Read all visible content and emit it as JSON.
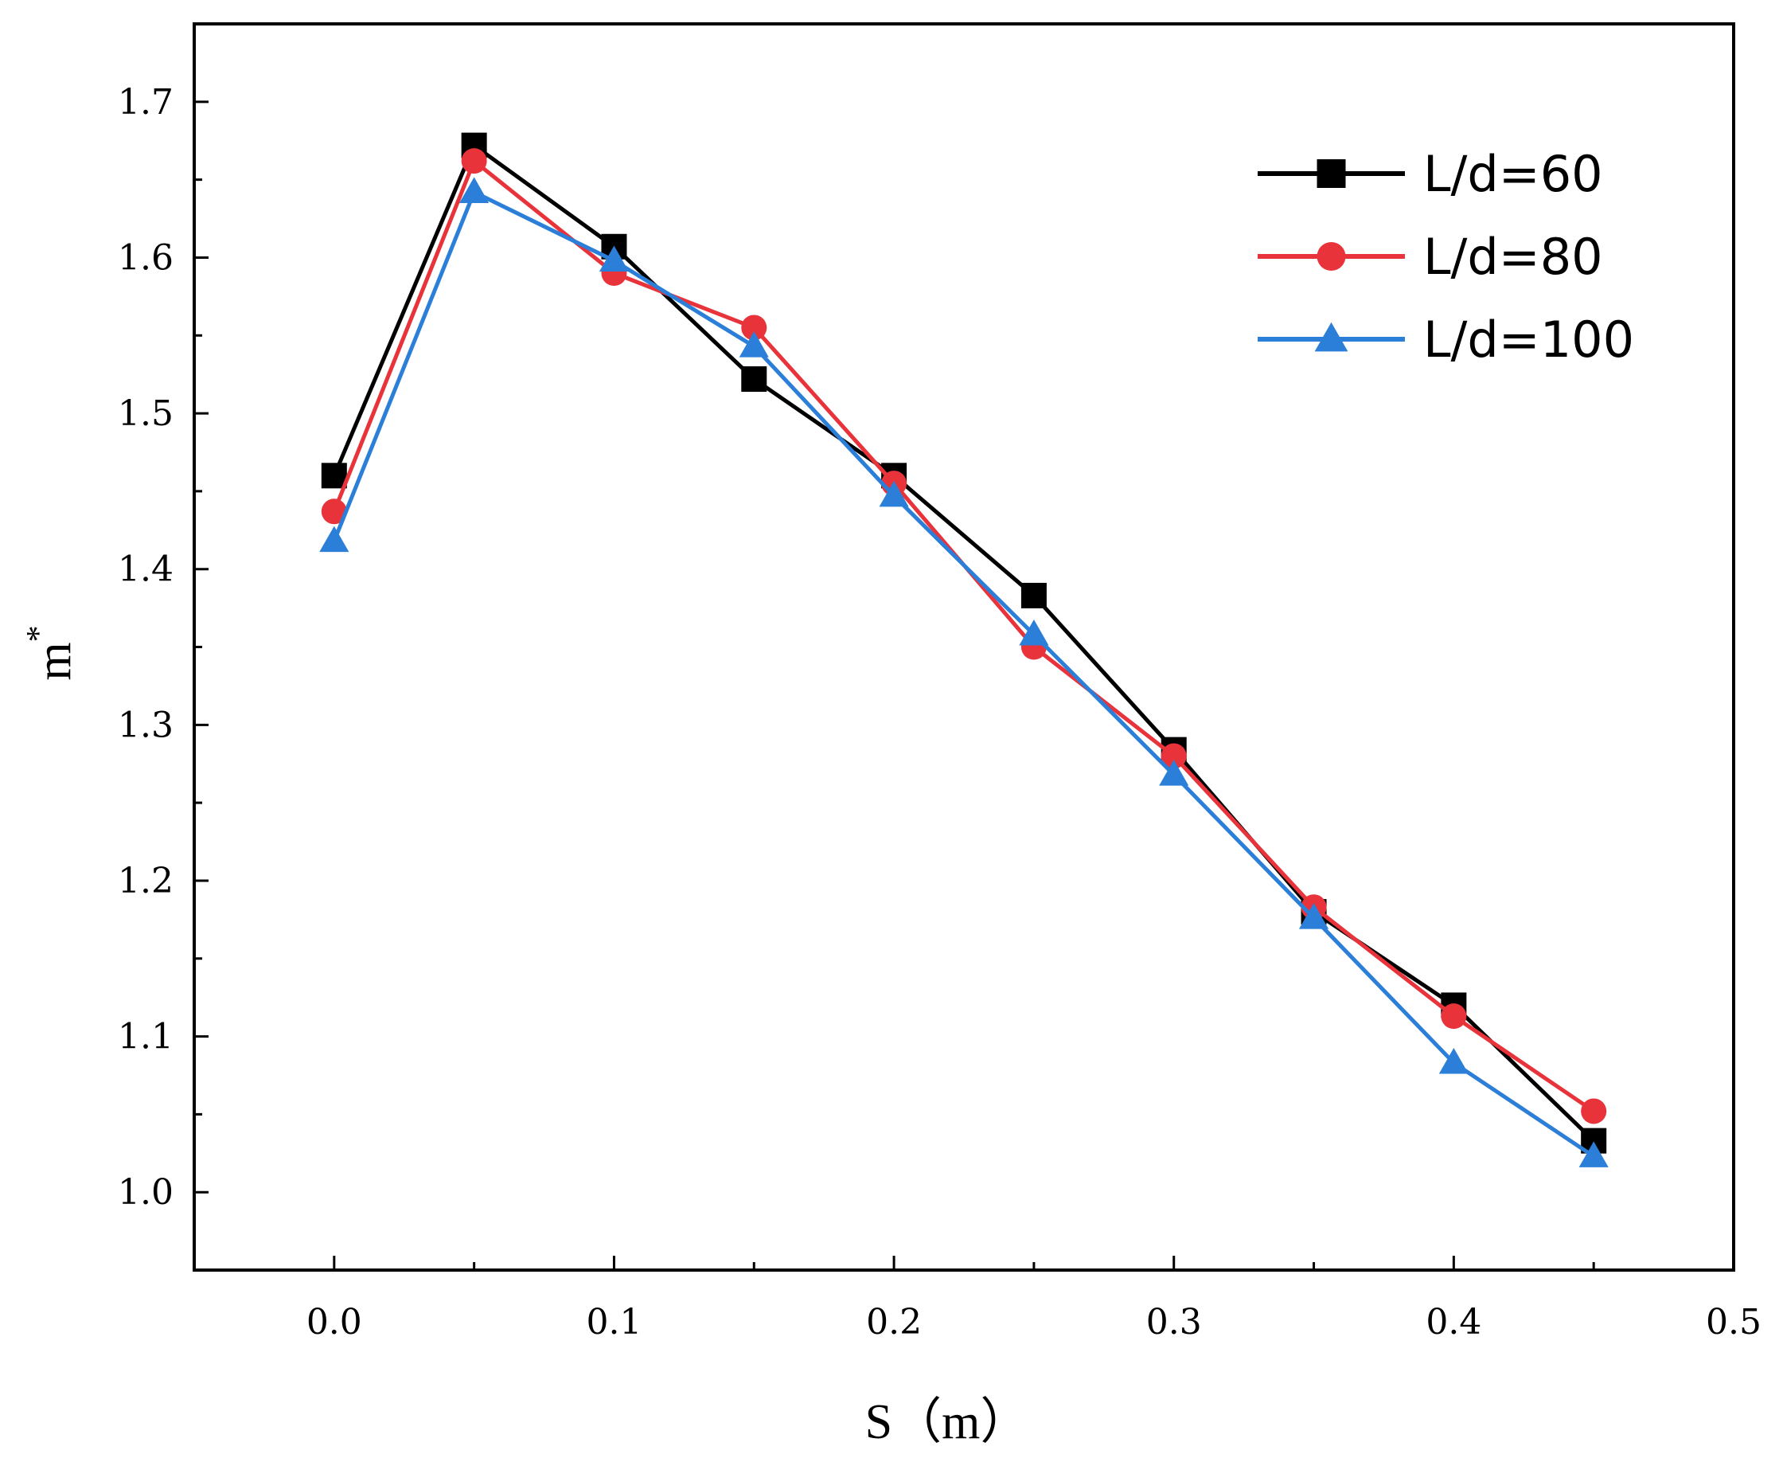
{
  "chart_data": {
    "type": "line",
    "title": "",
    "xlabel": "S（m）",
    "ylabel": "m",
    "ylabel_superscript": "*",
    "xlim": [
      -0.05,
      0.5
    ],
    "ylim": [
      0.95,
      1.75
    ],
    "xticks": [
      0.0,
      0.1,
      0.2,
      0.3,
      0.4,
      0.5
    ],
    "xtick_labels": [
      "0.0",
      "0.1",
      "0.2",
      "0.3",
      "0.4",
      "0.5"
    ],
    "yticks": [
      1.0,
      1.1,
      1.2,
      1.3,
      1.4,
      1.5,
      1.6,
      1.7
    ],
    "ytick_labels": [
      "1.0",
      "1.1",
      "1.2",
      "1.3",
      "1.4",
      "1.5",
      "1.6",
      "1.7"
    ],
    "grid": false,
    "legend_position": "top-right",
    "x": [
      0.0,
      0.05,
      0.1,
      0.15,
      0.2,
      0.25,
      0.3,
      0.35,
      0.4,
      0.45
    ],
    "series": [
      {
        "name": "L/d=60",
        "color": "#000000",
        "marker": "square",
        "values": [
          1.46,
          1.672,
          1.607,
          1.522,
          1.46,
          1.383,
          1.284,
          1.18,
          1.12,
          1.033
        ]
      },
      {
        "name": "L/d=80",
        "color": "#e8333b",
        "marker": "circle",
        "values": [
          1.437,
          1.662,
          1.59,
          1.555,
          1.455,
          1.35,
          1.28,
          1.183,
          1.113,
          1.052
        ]
      },
      {
        "name": "L/d=100",
        "color": "#2b7fd8",
        "marker": "triangle",
        "values": [
          1.418,
          1.642,
          1.598,
          1.543,
          1.447,
          1.358,
          1.268,
          1.176,
          1.083,
          1.023
        ]
      }
    ]
  }
}
